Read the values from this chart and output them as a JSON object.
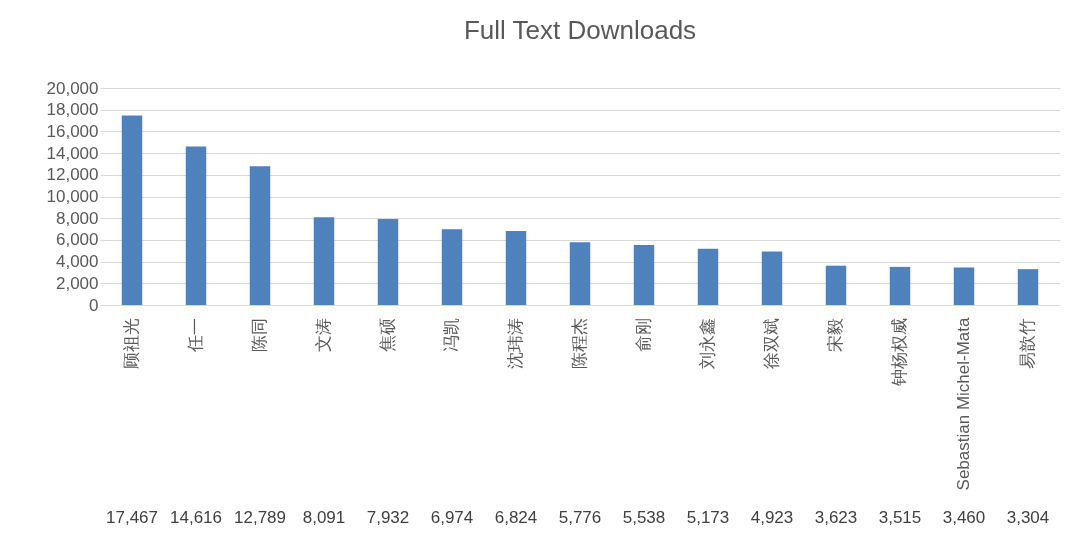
{
  "chart_data": {
    "type": "bar",
    "title": "Full Text Downloads",
    "categories": [
      "顾祖光",
      "任一",
      "陈同",
      "文涛",
      "焦硕",
      "冯凯",
      "沈玮涛",
      "陈程杰",
      "俞刚",
      "刘永鑫",
      "徐双斌",
      "宋毅",
      "钟杨权威",
      "Sebastian Michel-Mata",
      "易歆竹"
    ],
    "values": [
      17467,
      14616,
      12789,
      8091,
      7932,
      6974,
      6824,
      5776,
      5538,
      5173,
      4923,
      3623,
      3515,
      3460,
      3304
    ],
    "color": "#4f81bd",
    "ylim": [
      0,
      20000
    ],
    "yticks": [
      0,
      {
        "value": 2000,
        "label": "2,000"
      },
      {
        "value": 4000,
        "label": "4,000"
      },
      {
        "value": 6000,
        "label": "6,000"
      },
      {
        "value": 8000,
        "label": "8,000"
      },
      {
        "value": 10000,
        "label": "10,000"
      },
      {
        "value": 12000,
        "label": "12,000"
      },
      {
        "value": 14000,
        "label": "14,000"
      },
      {
        "value": 16000,
        "label": "16,000"
      },
      {
        "value": 18000,
        "label": "18,000"
      },
      {
        "value": 20000,
        "label": "20,000"
      }
    ],
    "value_labels": [
      "17,467",
      "14,616",
      "12,789",
      "8,091",
      "7,932",
      "6,974",
      "6,824",
      "5,776",
      "5,538",
      "5,173",
      "4,923",
      "3,623",
      "3,515",
      "3,460",
      "3,304"
    ],
    "grid": "y"
  }
}
